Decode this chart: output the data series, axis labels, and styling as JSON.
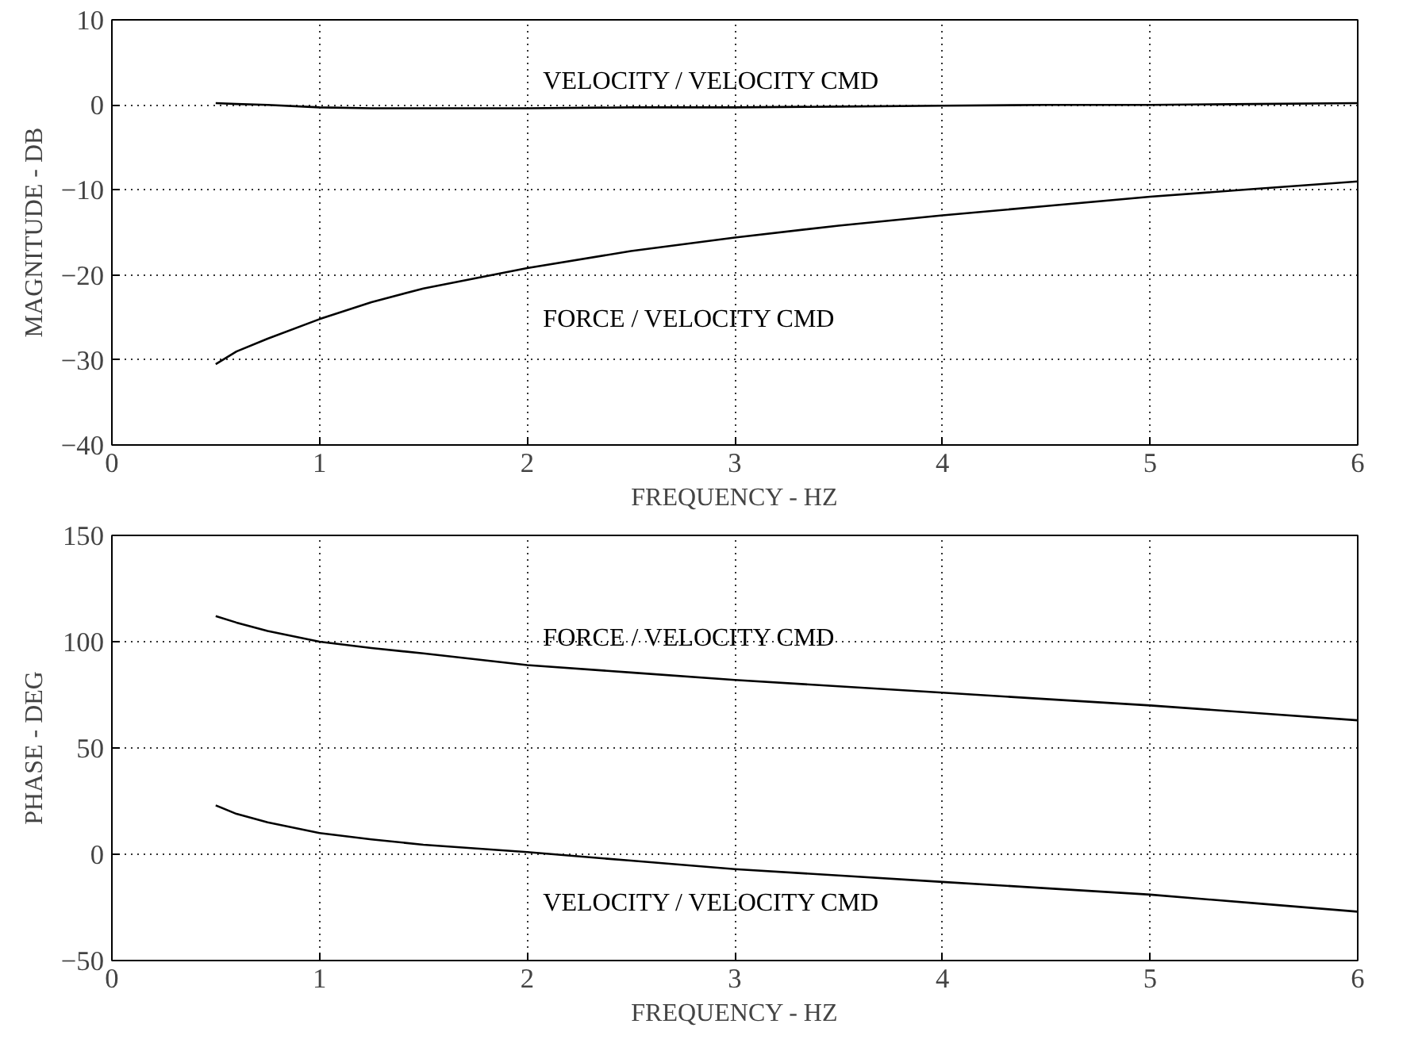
{
  "chart_data": [
    {
      "type": "line",
      "xlabel": "FREQUENCY - HZ",
      "ylabel": "MAGNITUDE - DB",
      "xlim": [
        0,
        6
      ],
      "xticks": [
        0,
        1,
        2,
        3,
        4,
        5,
        6
      ],
      "ylim": [
        -40,
        10
      ],
      "yticks": [
        -40,
        -30,
        -20,
        -10,
        0,
        10
      ],
      "grid": true,
      "x": [
        0.5,
        0.6,
        0.75,
        1,
        1.25,
        1.5,
        2,
        2.5,
        3,
        3.5,
        4,
        4.5,
        5,
        5.5,
        6
      ],
      "series": [
        {
          "name": "VELOCITY / VELOCITY CMD",
          "color": "#000000",
          "values": [
            0.2,
            0.1,
            0,
            -0.3,
            -0.4,
            -0.4,
            -0.4,
            -0.3,
            -0.3,
            -0.2,
            -0.1,
            0,
            0,
            0.1,
            0.2
          ]
        },
        {
          "name": "FORCE / VELOCITY CMD",
          "color": "#000000",
          "values": [
            -30.5,
            -29,
            -27.5,
            -25.2,
            -23.2,
            -21.6,
            -19.2,
            -17.2,
            -15.6,
            -14.2,
            -13,
            -11.9,
            -10.8,
            -9.9,
            -9
          ]
        }
      ]
    },
    {
      "type": "line",
      "xlabel": "FREQUENCY - HZ",
      "ylabel": "PHASE - DEG",
      "xlim": [
        0,
        6
      ],
      "xticks": [
        0,
        1,
        2,
        3,
        4,
        5,
        6
      ],
      "ylim": [
        -50,
        150
      ],
      "yticks": [
        -50,
        0,
        50,
        100,
        150
      ],
      "grid": true,
      "x": [
        0.5,
        0.6,
        0.75,
        1,
        1.25,
        1.5,
        2,
        2.5,
        3,
        3.5,
        4,
        4.5,
        5,
        5.5,
        6
      ],
      "series": [
        {
          "name": "FORCE / VELOCITY CMD",
          "color": "#000000",
          "values": [
            112,
            109,
            105,
            100,
            97,
            94.5,
            89,
            85.5,
            82,
            79,
            76,
            73,
            70,
            66.5,
            63
          ]
        },
        {
          "name": "VELOCITY / VELOCITY CMD",
          "color": "#000000",
          "values": [
            23,
            19,
            15,
            10,
            7,
            4.5,
            1,
            -3,
            -7,
            -10,
            -13,
            -16,
            -19,
            -23,
            -27
          ]
        }
      ]
    }
  ]
}
